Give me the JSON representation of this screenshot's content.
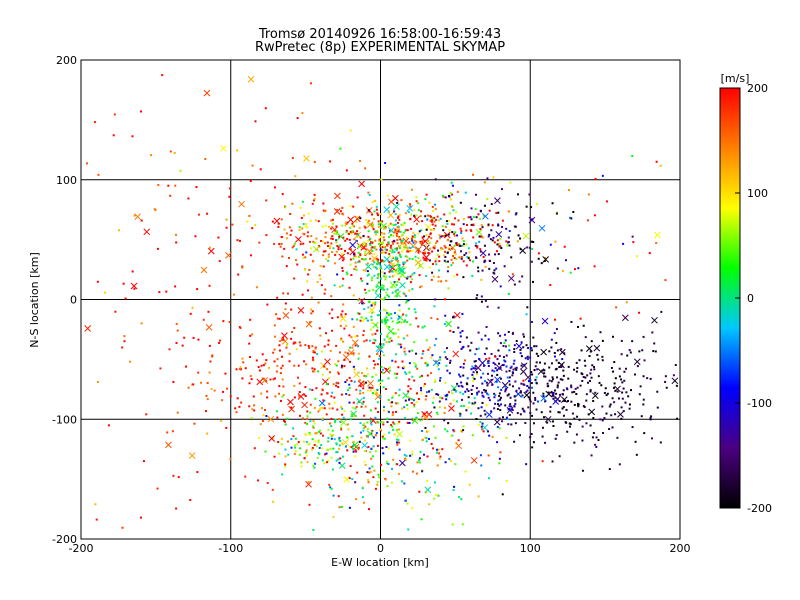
{
  "chart_data": {
    "type": "scatter",
    "title": "Tromsø 20140926 16:58:00-16:59:43",
    "subtitle": "RwPretec (8p) EXPERIMENTAL SKYMAP",
    "xlabel": "E-W location [km]",
    "ylabel": "N-S location [km]",
    "xlim": [
      -200,
      200
    ],
    "ylim": [
      -200,
      200
    ],
    "xticks": [
      "-200",
      "-100",
      "0",
      "100",
      "200"
    ],
    "yticks": [
      "-200",
      "-100",
      "0",
      "100",
      "200"
    ],
    "grid": true,
    "colorbar": {
      "unit": "[m/s]",
      "range": [
        -200,
        200
      ],
      "ticks": [
        "-200",
        "-100",
        "0",
        "100",
        "200"
      ],
      "placement": "right"
    },
    "colormap": [
      "#000000",
      "#4b0082",
      "#0000ff",
      "#00c8ff",
      "#00ff00",
      "#ffff00",
      "#ff8000",
      "#ff0000"
    ],
    "clusters": [
      {
        "cx": 5,
        "cy": 50,
        "sx": 35,
        "sy": 15,
        "n": 520,
        "vel": 160,
        "vsd": 80
      },
      {
        "cx": 20,
        "cy": 55,
        "sx": 45,
        "sy": 25,
        "n": 200,
        "vel": 80,
        "vsd": 120
      },
      {
        "cx": 5,
        "cy": 5,
        "sx": 10,
        "sy": 30,
        "n": 240,
        "vel": 20,
        "vsd": 40
      },
      {
        "cx": -40,
        "cy": -60,
        "sx": 35,
        "sy": 30,
        "n": 320,
        "vel": 190,
        "vsd": 50
      },
      {
        "cx": 15,
        "cy": -100,
        "sx": 30,
        "sy": 40,
        "n": 480,
        "vel": 60,
        "vsd": 110
      },
      {
        "cx": -40,
        "cy": -115,
        "sx": 15,
        "sy": 15,
        "n": 120,
        "vel": 40,
        "vsd": 50
      },
      {
        "cx": 130,
        "cy": -75,
        "sx": 35,
        "sy": 25,
        "n": 380,
        "vel": -180,
        "vsd": 15
      },
      {
        "cx": 75,
        "cy": -65,
        "sx": 20,
        "sy": 25,
        "n": 260,
        "vel": -120,
        "vsd": 40
      },
      {
        "cx": 70,
        "cy": 45,
        "sx": 25,
        "sy": 20,
        "n": 130,
        "vel": -175,
        "vsd": 30
      },
      {
        "cx": -100,
        "cy": -40,
        "sx": 60,
        "sy": 80,
        "n": 180,
        "vel": 190,
        "vsd": 40
      },
      {
        "cx": -100,
        "cy": 110,
        "sx": 60,
        "sy": 50,
        "n": 70,
        "vel": 160,
        "vsd": 60
      },
      {
        "cx": 130,
        "cy": 60,
        "sx": 50,
        "sy": 50,
        "n": 40,
        "vel": 150,
        "vsd": 120
      }
    ]
  }
}
